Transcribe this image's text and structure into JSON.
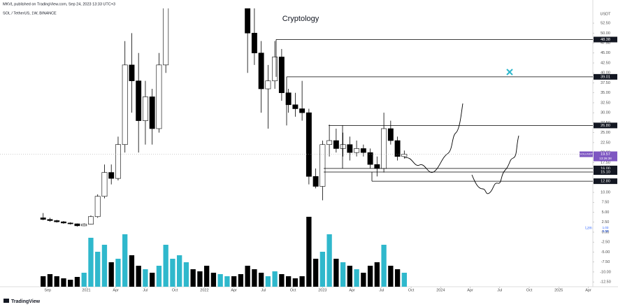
{
  "header": {
    "publisher": "MKVL published on TradingView.com, Sep 24, 2023 13:33 UTC+3",
    "symbol": "SOL / TetherUS, 1W, BINANCE"
  },
  "chart_data": {
    "type": "candlestick",
    "title": "Cryptology",
    "y_unit": "USDT",
    "x": [
      -19,
      -16,
      -13,
      -10,
      -7,
      -4,
      -1,
      2,
      5,
      8,
      11,
      14,
      17,
      20,
      23,
      26,
      29,
      32,
      35,
      38,
      41,
      44,
      47,
      50,
      53,
      56,
      59,
      62,
      65,
      68,
      71,
      74,
      77,
      80,
      83,
      86,
      89,
      92,
      95,
      98,
      101,
      104,
      107,
      110,
      113,
      116,
      119,
      122,
      125,
      128,
      131,
      134,
      137,
      140
    ],
    "open": [
      3.6,
      3.2,
      2.9,
      2.6,
      2.3,
      2.1,
      1.6,
      2.0,
      3.9,
      9.0,
      15,
      13.5,
      22,
      42,
      38,
      28,
      34,
      26,
      42,
      70,
      140,
      190,
      230,
      200,
      170,
      110,
      90,
      100,
      130,
      100,
      85,
      50,
      45,
      36,
      38,
      44,
      35,
      32,
      31,
      30,
      14,
      11.5,
      22,
      23,
      21,
      22,
      20,
      21,
      20,
      17,
      16,
      26,
      23,
      19
    ],
    "high": [
      4.8,
      3.6,
      3.1,
      2.8,
      2.5,
      2.2,
      2.2,
      4.2,
      9.5,
      17,
      17,
      24,
      48,
      50,
      45,
      38,
      36,
      45,
      75,
      150,
      215,
      260,
      240,
      220,
      180,
      115,
      110,
      140,
      135,
      110,
      90,
      60,
      48,
      42,
      48,
      46,
      36,
      35,
      38,
      31,
      16,
      23,
      27,
      26,
      25,
      24,
      23,
      22,
      21,
      19,
      30,
      28,
      24,
      20.5
    ],
    "low": [
      3.0,
      2.6,
      2.4,
      2.1,
      1.9,
      1.4,
      1.5,
      1.9,
      3.6,
      8.5,
      12,
      13,
      20,
      30,
      20,
      22,
      22,
      25,
      40,
      65,
      130,
      170,
      180,
      150,
      95,
      80,
      85,
      90,
      95,
      75,
      40,
      42,
      30,
      26,
      36,
      33,
      30,
      29,
      28,
      12,
      11,
      8,
      19,
      20,
      19,
      18,
      19,
      19,
      16,
      14,
      15,
      22,
      18,
      18.5
    ],
    "close": [
      3.2,
      2.9,
      2.6,
      2.3,
      2.1,
      1.6,
      2.0,
      3.9,
      9.0,
      15,
      13.5,
      22,
      42,
      38,
      28,
      34,
      26,
      42,
      70,
      140,
      190,
      230,
      200,
      170,
      110,
      90,
      100,
      130,
      100,
      85,
      50,
      45,
      36,
      38,
      44,
      35,
      32,
      31,
      30,
      14,
      11.5,
      22,
      23,
      21,
      22,
      20,
      21,
      20,
      17,
      16,
      26,
      23,
      19,
      19.57
    ],
    "volume": [
      15,
      18,
      15,
      12,
      10,
      14,
      20,
      70,
      50,
      60,
      35,
      40,
      75,
      45,
      30,
      25,
      20,
      30,
      60,
      40,
      45,
      35,
      25,
      22,
      30,
      20,
      18,
      15,
      15,
      18,
      30,
      25,
      20,
      15,
      22,
      18,
      15,
      12,
      15,
      100,
      40,
      50,
      75,
      40,
      35,
      30,
      25,
      20,
      30,
      35,
      60,
      30,
      25,
      20
    ],
    "colors": {
      "up": "#ffffff",
      "down": "#000000",
      "outline": "#000000",
      "volume_up": "#2fb8cc",
      "volume_down": "#000000"
    },
    "xlim": [
      -38,
      223
    ],
    "xticks": [
      {
        "value": -17,
        "label": "Sep"
      },
      {
        "value": 0,
        "label": "2021"
      },
      {
        "value": 13,
        "label": "Apr"
      },
      {
        "value": 26,
        "label": "Jul"
      },
      {
        "value": 39,
        "label": "Oct"
      },
      {
        "value": 52,
        "label": "2022"
      },
      {
        "value": 65,
        "label": "Apr"
      },
      {
        "value": 78,
        "label": "Jul"
      },
      {
        "value": 91,
        "label": "Oct"
      },
      {
        "value": 104,
        "label": "2023"
      },
      {
        "value": 117,
        "label": "Apr"
      },
      {
        "value": 130,
        "label": "Jul"
      },
      {
        "value": 143,
        "label": "Oct"
      },
      {
        "value": 156,
        "label": "2024"
      },
      {
        "value": 169,
        "label": "Apr"
      },
      {
        "value": 182,
        "label": "Jul"
      },
      {
        "value": 195,
        "label": "Oct"
      },
      {
        "value": 208,
        "label": "2025"
      },
      {
        "value": 221,
        "label": "Apr"
      }
    ],
    "ylim": [
      -13,
      55.5
    ],
    "yticks": [
      {
        "value": 52.5,
        "label": "52.50"
      },
      {
        "value": 50,
        "label": "50.00"
      },
      {
        "value": 47.5,
        "label": "47.50"
      },
      {
        "value": 45,
        "label": "45.00"
      },
      {
        "value": 42.5,
        "label": "42.50"
      },
      {
        "value": 40,
        "label": "40.00"
      },
      {
        "value": 37.5,
        "label": "37.50"
      },
      {
        "value": 35,
        "label": "35.00"
      },
      {
        "value": 32.5,
        "label": "32.50"
      },
      {
        "value": 30,
        "label": "30.00"
      },
      {
        "value": 27.5,
        "label": "27.50"
      },
      {
        "value": 25,
        "label": "25.00"
      },
      {
        "value": 22.5,
        "label": "22.50"
      },
      {
        "value": 20,
        "label": "20.00"
      },
      {
        "value": 17.5,
        "label": "17.50"
      },
      {
        "value": 15,
        "label": "15.00"
      },
      {
        "value": 12.5,
        "label": "12.50"
      },
      {
        "value": 10,
        "label": "10.00"
      },
      {
        "value": 7.5,
        "label": "7.50"
      },
      {
        "value": 5,
        "label": "5.00"
      },
      {
        "value": 2.5,
        "label": "2.50"
      },
      {
        "value": 0,
        "label": "0.00"
      },
      {
        "value": -2.5,
        "label": "-2.50"
      },
      {
        "value": -5,
        "label": "-5.00"
      },
      {
        "value": -7.5,
        "label": "-7.50"
      },
      {
        "value": -10,
        "label": "-10.00"
      },
      {
        "value": -12.5,
        "label": "-12.50"
      }
    ],
    "y2lim": [
      0,
      100
    ],
    "levels": [
      {
        "value": 48.38,
        "label": "48.38"
      },
      {
        "value": 39.01,
        "label": "39.01"
      },
      {
        "value": 26.8,
        "label": "26.80"
      },
      {
        "value": 16,
        "label": "16.00"
      },
      {
        "value": 15.1,
        "label": "15.10"
      },
      {
        "value": 12.8,
        "label": "12.80"
      }
    ],
    "last_price": {
      "name": "SOLUSDT",
      "value": 19.57,
      "countdown": "13:26:38"
    },
    "indicator": {
      "name": "Lzm",
      "values": [
        1.03,
        0
      ],
      "value_labels": [
        "1.03",
        "0.00"
      ]
    }
  },
  "footer": {
    "logo": "TradingView"
  }
}
